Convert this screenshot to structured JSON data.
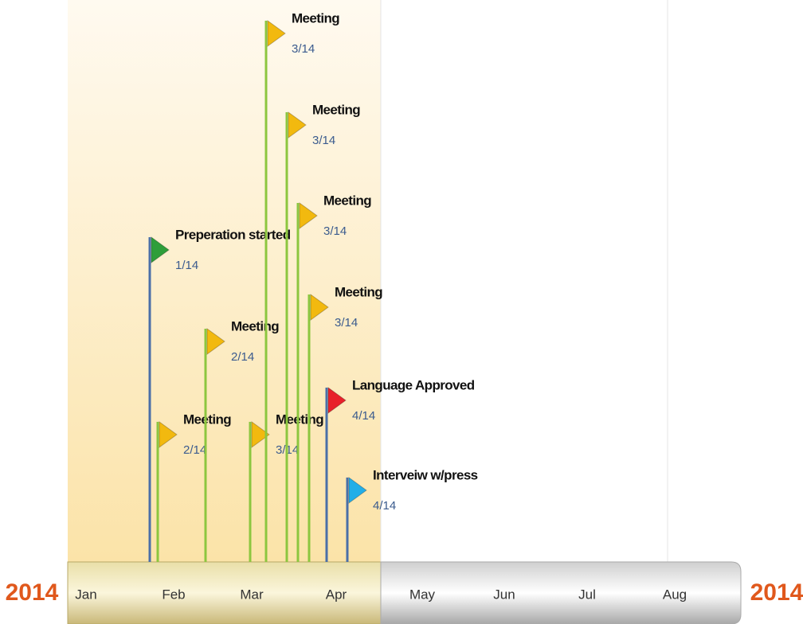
{
  "year_left": "2014",
  "year_right": "2014",
  "months": [
    "Jan",
    "Feb",
    "Mar",
    "Apr",
    "May",
    "Jun",
    "Jul",
    "Aug"
  ],
  "events": [
    {
      "title": "Preperation started",
      "date": "1/14",
      "color": "#2e9e3a"
    },
    {
      "title": "Meeting",
      "date": "2/14",
      "color": "#f2b90f"
    },
    {
      "title": "Meeting",
      "date": "2/14",
      "color": "#f2b90f"
    },
    {
      "title": "Meeting",
      "date": "3/14",
      "color": "#f2b90f"
    },
    {
      "title": "Meeting",
      "date": "3/14",
      "color": "#f2b90f"
    },
    {
      "title": "Meeting",
      "date": "3/14",
      "color": "#f2b90f"
    },
    {
      "title": "Meeting",
      "date": "3/14",
      "color": "#f2b90f"
    },
    {
      "title": "Meeting",
      "date": "3/14",
      "color": "#f2b90f"
    },
    {
      "title": "Language Approved",
      "date": "4/14",
      "color": "#e8202a"
    },
    {
      "title": "Interveiw w/press",
      "date": "4/14",
      "color": "#22aee8"
    }
  ]
}
